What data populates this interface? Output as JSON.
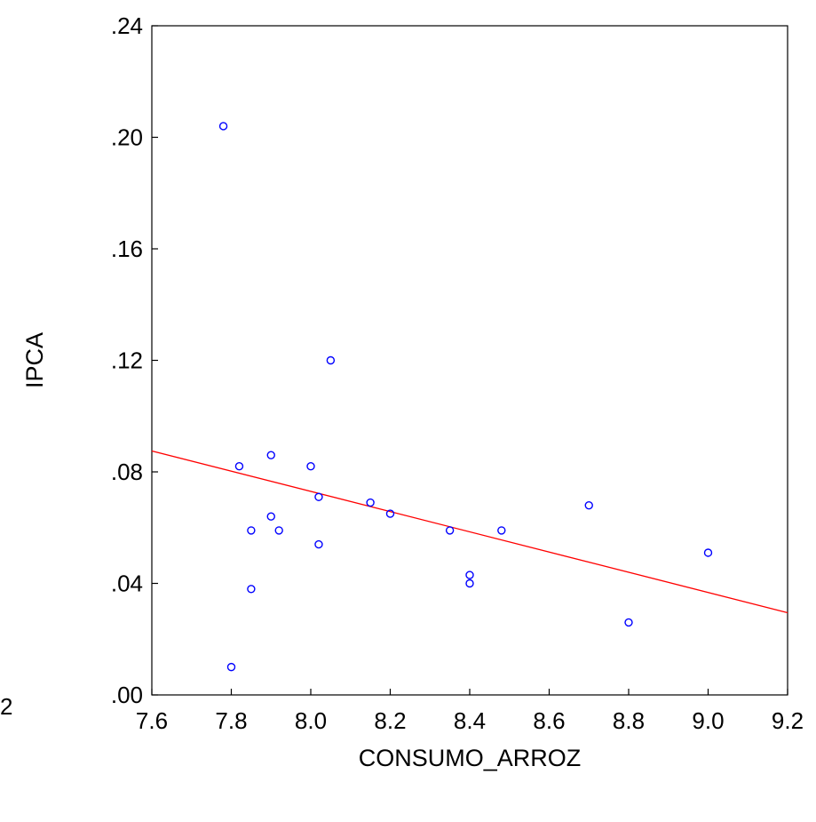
{
  "stray_label": "2",
  "colors": {
    "points": "#0000ff",
    "fit_line": "#ff0000",
    "frame": "#000000"
  },
  "chart_data": {
    "type": "scatter",
    "title": "",
    "xlabel": "CONSUMO_ARROZ",
    "ylabel": "IPCA",
    "xlim": [
      7.6,
      9.2
    ],
    "ylim": [
      0.0,
      0.24
    ],
    "x_ticks": [
      7.6,
      7.8,
      8.0,
      8.2,
      8.4,
      8.6,
      8.8,
      9.0,
      9.2
    ],
    "x_tick_labels": [
      "7.6",
      "7.8",
      "8.0",
      "8.2",
      "8.4",
      "8.6",
      "8.8",
      "9.0",
      "9.2"
    ],
    "y_ticks": [
      0.0,
      0.04,
      0.08,
      0.12,
      0.16,
      0.2,
      0.24
    ],
    "y_tick_labels": [
      ".00",
      ".04",
      ".08",
      ".12",
      ".16",
      ".20",
      ".24"
    ],
    "grid": false,
    "points": [
      {
        "x": 7.78,
        "y": 0.204
      },
      {
        "x": 7.8,
        "y": 0.01
      },
      {
        "x": 7.82,
        "y": 0.082
      },
      {
        "x": 7.85,
        "y": 0.059
      },
      {
        "x": 7.85,
        "y": 0.038
      },
      {
        "x": 7.9,
        "y": 0.086
      },
      {
        "x": 7.9,
        "y": 0.064
      },
      {
        "x": 7.92,
        "y": 0.059
      },
      {
        "x": 8.0,
        "y": 0.082
      },
      {
        "x": 8.02,
        "y": 0.071
      },
      {
        "x": 8.02,
        "y": 0.054
      },
      {
        "x": 8.05,
        "y": 0.12
      },
      {
        "x": 8.15,
        "y": 0.069
      },
      {
        "x": 8.2,
        "y": 0.065
      },
      {
        "x": 8.35,
        "y": 0.059
      },
      {
        "x": 8.4,
        "y": 0.043
      },
      {
        "x": 8.4,
        "y": 0.04
      },
      {
        "x": 8.48,
        "y": 0.059
      },
      {
        "x": 8.7,
        "y": 0.068
      },
      {
        "x": 8.8,
        "y": 0.026
      },
      {
        "x": 9.0,
        "y": 0.051
      }
    ],
    "fit_line": {
      "x": [
        7.6,
        9.2
      ],
      "y": [
        0.0875,
        0.0295
      ]
    }
  }
}
